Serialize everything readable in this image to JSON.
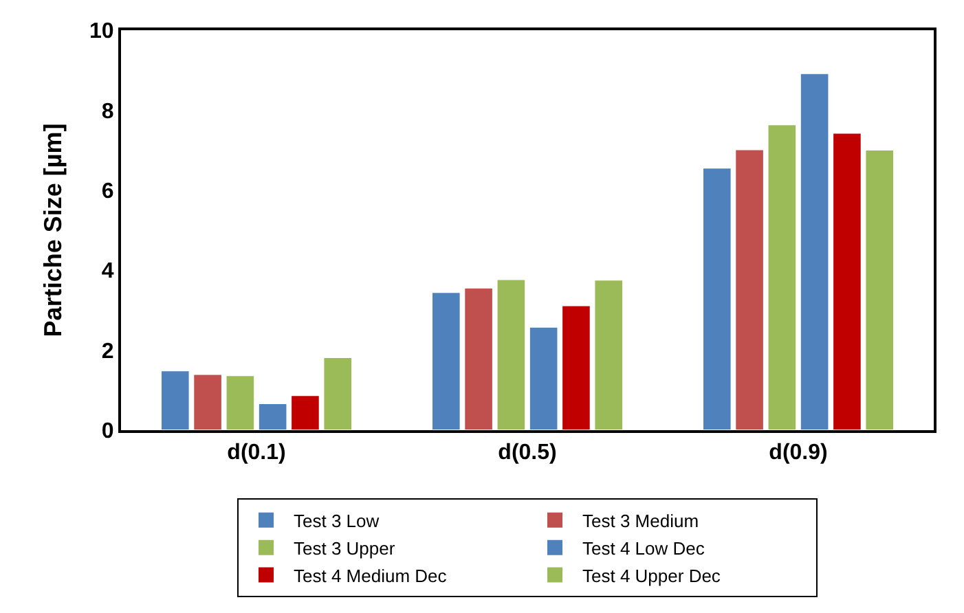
{
  "chart_data": {
    "type": "bar",
    "ylabel": "Partiche Size [µm]",
    "categories": [
      "d(0.1)",
      "d(0.5)",
      "d(0.9)"
    ],
    "series": [
      {
        "name": "Test 3 Low",
        "color": "#4f81bd",
        "values": [
          1.49,
          3.45,
          6.56
        ]
      },
      {
        "name": "Test 3 Medium",
        "color": "#c0504d",
        "values": [
          1.4,
          3.56,
          7.02
        ]
      },
      {
        "name": "Test 3 Upper",
        "color": "#9bbb59",
        "values": [
          1.37,
          3.77,
          7.64
        ]
      },
      {
        "name": "Test 4 Low Dec",
        "color": "#4f81bd",
        "values": [
          0.67,
          2.58,
          8.92
        ]
      },
      {
        "name": "Test 4 Medium Dec",
        "color": "#c00000",
        "values": [
          0.87,
          3.12,
          7.43
        ]
      },
      {
        "name": "Test 4 Upper Dec",
        "color": "#9bbb59",
        "values": [
          1.82,
          3.76,
          7.01
        ]
      }
    ],
    "ylim": [
      0,
      10
    ],
    "yticks": [
      0,
      2,
      4,
      6,
      8,
      10
    ],
    "grid": false,
    "legend": "bottom"
  }
}
